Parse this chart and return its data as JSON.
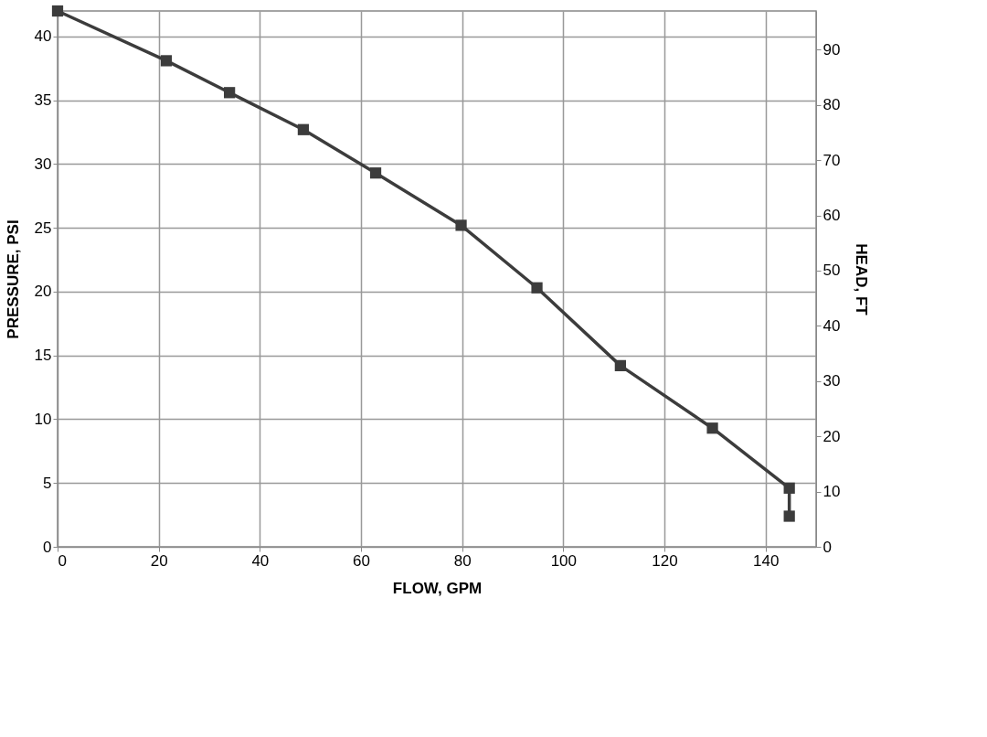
{
  "chart_data": {
    "type": "line",
    "xlabel": "FLOW, GPM",
    "ylabel": "PRESSURE, PSI",
    "y2label": "HEAD, FT",
    "x": [
      0,
      21.5,
      34,
      48.6,
      62.9,
      79.8,
      94.8,
      111.3,
      129.5,
      144.7,
      144.7
    ],
    "series": [
      {
        "color": "#3c3c3c",
        "values": [
          42,
          38.1,
          35.6,
          32.7,
          29.3,
          25.2,
          20.3,
          14.2,
          9.3,
          4.6,
          2.4
        ]
      }
    ],
    "xlim": [
      0,
      150
    ],
    "xticks": [
      0,
      20,
      40,
      60,
      80,
      100,
      120,
      140
    ],
    "ylim": [
      0,
      42
    ],
    "yticks": [
      0,
      5,
      10,
      15,
      20,
      25,
      30,
      35,
      40
    ],
    "y2lim": [
      0,
      97
    ],
    "y2ticks": [
      0,
      10,
      20,
      30,
      40,
      50,
      60,
      70,
      80,
      90
    ],
    "grid": true,
    "marker": "square",
    "line_style": "solid"
  }
}
